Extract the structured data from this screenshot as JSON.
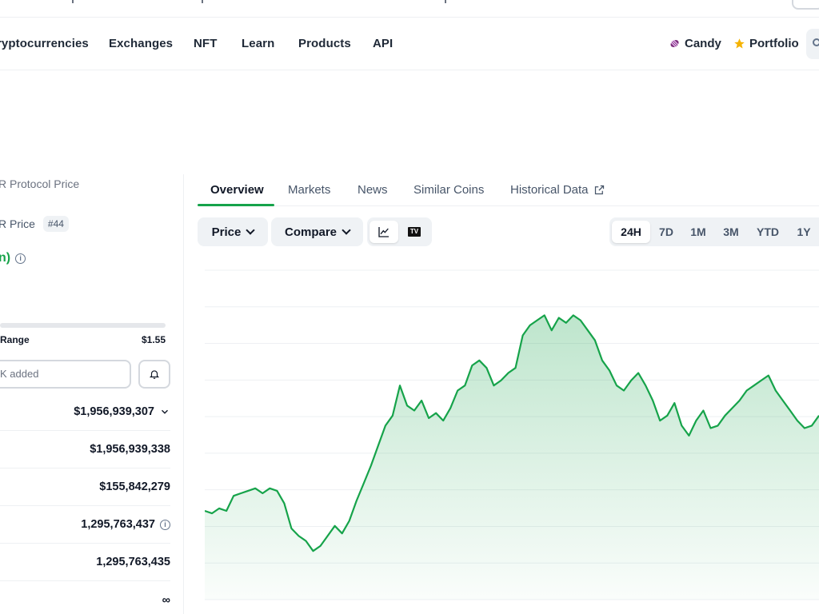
{
  "nav": {
    "items": [
      "ryptocurrencies",
      "Exchanges",
      "NFT",
      "Learn",
      "Products",
      "API"
    ],
    "candy_label": "Candy",
    "portfolio_label": "Portfolio"
  },
  "coin": {
    "breadcrumb": "R Protocol Price",
    "name_label": "R Price",
    "rank": "#44",
    "change_text": "n)",
    "range_label": "Range",
    "range_high": "$1.55",
    "watchlist_placeholder": "K added"
  },
  "stats": [
    {
      "value": "$1,956,939,307",
      "suffix": "chevron"
    },
    {
      "value": "$1,956,939,338",
      "suffix": ""
    },
    {
      "value": "$155,842,279",
      "suffix": ""
    },
    {
      "value": "1,295,763,437",
      "suffix": "info"
    },
    {
      "value": "1,295,763,435",
      "suffix": ""
    },
    {
      "value": "∞",
      "suffix": ""
    }
  ],
  "tabs": [
    {
      "label": "Overview",
      "active": true
    },
    {
      "label": "Markets"
    },
    {
      "label": "News"
    },
    {
      "label": "Similar Coins"
    },
    {
      "label": "Historical Data",
      "external": true
    }
  ],
  "toolbar": {
    "price_label": "Price",
    "compare_label": "Compare",
    "view_icons": [
      "line-chart-icon",
      "tradingview-icon"
    ],
    "ranges": [
      "24H",
      "7D",
      "1M",
      "3M",
      "YTD",
      "1Y"
    ],
    "active_range": "24H"
  },
  "colors": {
    "accent": "#16a34a",
    "line": "#16a34a",
    "fill": "#dcfce7"
  },
  "chart_data": {
    "type": "area",
    "values": [
      0.22,
      0.21,
      0.23,
      0.22,
      0.28,
      0.29,
      0.3,
      0.31,
      0.29,
      0.31,
      0.3,
      0.25,
      0.15,
      0.12,
      0.1,
      0.06,
      0.08,
      0.12,
      0.16,
      0.13,
      0.18,
      0.26,
      0.33,
      0.4,
      0.48,
      0.56,
      0.6,
      0.72,
      0.64,
      0.62,
      0.66,
      0.59,
      0.61,
      0.58,
      0.63,
      0.7,
      0.72,
      0.8,
      0.82,
      0.79,
      0.72,
      0.74,
      0.77,
      0.79,
      0.92,
      0.96,
      0.98,
      1.0,
      0.94,
      0.99,
      0.97,
      1.0,
      0.98,
      0.94,
      0.9,
      0.82,
      0.78,
      0.72,
      0.7,
      0.74,
      0.77,
      0.72,
      0.66,
      0.58,
      0.6,
      0.65,
      0.56,
      0.52,
      0.58,
      0.62,
      0.55,
      0.56,
      0.6,
      0.63,
      0.66,
      0.7,
      0.72,
      0.74,
      0.76,
      0.7,
      0.66,
      0.62,
      0.58,
      0.55,
      0.56,
      0.6
    ],
    "ylim": [
      0,
      1.1
    ],
    "grid": true
  }
}
